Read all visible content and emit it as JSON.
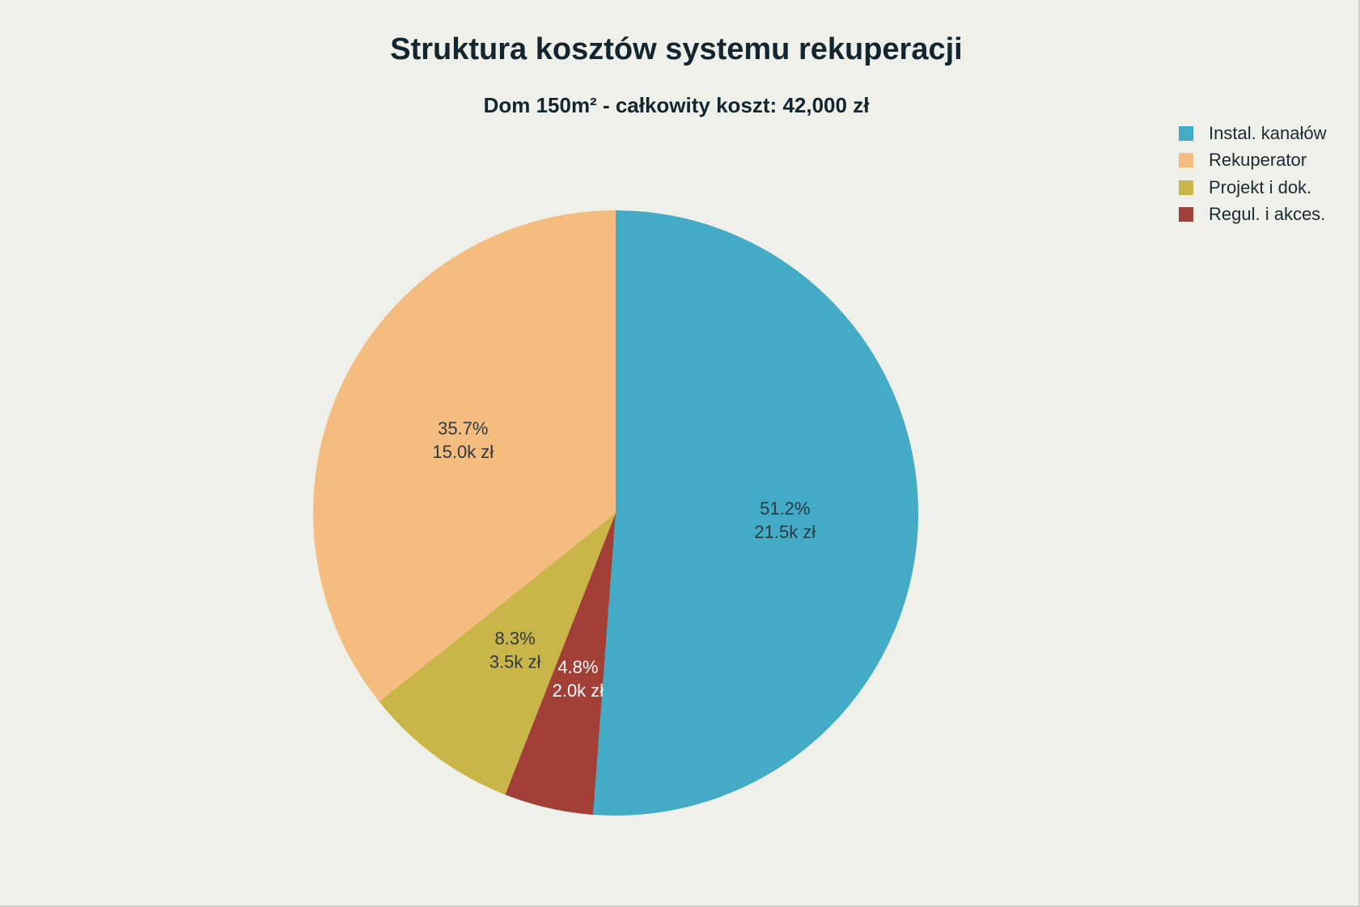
{
  "title": "Struktura kosztów systemu rekuperacji",
  "subtitle": "Dom 150m² - całkowity koszt: 42,000 zł",
  "chart_data": {
    "type": "pie",
    "title": "Struktura kosztów systemu rekuperacji",
    "subtitle": "Dom 150m² - całkowity koszt: 42,000 zł",
    "legend_position": "top-right",
    "start_angle": "12 o'clock",
    "direction": "clockwise",
    "slices": [
      {
        "name": "Instal. kanałów",
        "value": 21.5,
        "percent": 51.2,
        "pct_label": "51.2%",
        "value_label": "21.5k zł",
        "color": "#43abc6",
        "text_color": "#2b3a44"
      },
      {
        "name": "Regul. i akces.",
        "value": 2.0,
        "percent": 4.8,
        "pct_label": "4.8%",
        "value_label": "2.0k zł",
        "color": "#a23f36",
        "text_color": "#ffffff"
      },
      {
        "name": "Projekt i dok.",
        "value": 3.5,
        "percent": 8.3,
        "pct_label": "8.3%",
        "value_label": "3.5k zł",
        "color": "#c9b548",
        "text_color": "#2b3a44"
      },
      {
        "name": "Rekuperator",
        "value": 15.0,
        "percent": 35.7,
        "pct_label": "35.7%",
        "value_label": "15.0k zł",
        "color": "#f5bc80",
        "text_color": "#2b3a44"
      }
    ],
    "legend": [
      {
        "name": "Instal. kanałów",
        "color": "#43abc6"
      },
      {
        "name": "Rekuperator",
        "color": "#f5bc80"
      },
      {
        "name": "Projekt i dok.",
        "color": "#c9b548"
      },
      {
        "name": "Regul. i akces.",
        "color": "#a23f36"
      }
    ]
  }
}
